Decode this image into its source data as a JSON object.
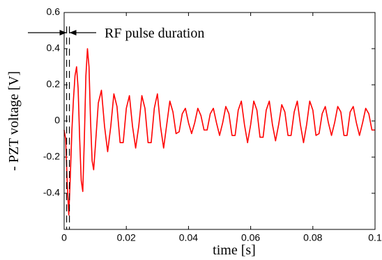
{
  "chart_data": {
    "type": "line",
    "xlabel": "time [s]",
    "ylabel": "- PZT voltage [V]",
    "annotation": {
      "text": "RF pulse duration",
      "x": [
        0.0008,
        0.0017
      ]
    },
    "xlim": [
      0,
      0.1
    ],
    "xticks": [
      0,
      0.02,
      0.04,
      0.06,
      0.08,
      0.1
    ],
    "ylim": [
      -0.6,
      0.6
    ],
    "yticks": [
      -0.4,
      -0.2,
      0,
      0.2,
      0.4,
      0.6
    ],
    "series": [
      {
        "color": "#ff0000",
        "x": [
          0,
          0.0005,
          0.001,
          0.0015,
          0.002,
          0.0025,
          0.003,
          0.0035,
          0.004,
          0.0045,
          0.005,
          0.0055,
          0.006,
          0.0065,
          0.007,
          0.0075,
          0.008,
          0.0085,
          0.009,
          0.0095,
          0.01,
          0.011,
          0.012,
          0.013,
          0.014,
          0.015,
          0.016,
          0.017,
          0.018,
          0.019,
          0.02,
          0.021,
          0.022,
          0.023,
          0.024,
          0.025,
          0.026,
          0.027,
          0.028,
          0.029,
          0.03,
          0.031,
          0.032,
          0.033,
          0.034,
          0.035,
          0.036,
          0.037,
          0.038,
          0.039,
          0.04,
          0.041,
          0.042,
          0.043,
          0.044,
          0.045,
          0.046,
          0.047,
          0.048,
          0.049,
          0.05,
          0.051,
          0.052,
          0.053,
          0.054,
          0.055,
          0.056,
          0.057,
          0.058,
          0.059,
          0.06,
          0.061,
          0.062,
          0.063,
          0.064,
          0.065,
          0.066,
          0.067,
          0.068,
          0.069,
          0.07,
          0.071,
          0.072,
          0.073,
          0.074,
          0.075,
          0.076,
          0.077,
          0.078,
          0.079,
          0.08,
          0.081,
          0.082,
          0.083,
          0.084,
          0.085,
          0.086,
          0.087,
          0.088,
          0.089,
          0.09,
          0.091,
          0.092,
          0.093,
          0.094,
          0.095,
          0.096,
          0.097,
          0.098,
          0.099,
          0.1
        ],
        "values": [
          -0.05,
          -0.1,
          -0.35,
          -0.52,
          -0.3,
          -0.05,
          0.12,
          0.25,
          0.3,
          0.18,
          -0.1,
          -0.33,
          -0.39,
          -0.1,
          0.25,
          0.4,
          0.3,
          0.0,
          -0.22,
          -0.27,
          -0.15,
          0.1,
          0.17,
          -0.03,
          -0.17,
          -0.03,
          0.15,
          0.08,
          -0.12,
          -0.12,
          0.07,
          0.14,
          -0.03,
          -0.15,
          -0.03,
          0.14,
          0.07,
          -0.12,
          -0.12,
          0.07,
          0.15,
          -0.03,
          -0.15,
          -0.02,
          0.11,
          0.05,
          -0.07,
          -0.06,
          0.04,
          0.07,
          -0.01,
          -0.07,
          -0.01,
          0.07,
          0.03,
          -0.05,
          -0.05,
          0.04,
          0.07,
          -0.01,
          -0.08,
          -0.01,
          0.08,
          0.04,
          -0.08,
          -0.08,
          0.06,
          0.11,
          -0.02,
          -0.12,
          -0.02,
          0.11,
          0.06,
          -0.09,
          -0.09,
          0.06,
          0.11,
          -0.02,
          -0.11,
          -0.02,
          0.09,
          0.05,
          -0.08,
          -0.08,
          0.05,
          0.11,
          -0.02,
          -0.12,
          -0.02,
          0.11,
          0.06,
          -0.08,
          -0.07,
          0.04,
          0.08,
          -0.01,
          -0.08,
          -0.01,
          0.08,
          0.05,
          -0.08,
          -0.08,
          0.05,
          0.08,
          -0.01,
          -0.08,
          -0.01,
          0.07,
          0.04,
          -0.05,
          -0.05
        ]
      }
    ]
  }
}
